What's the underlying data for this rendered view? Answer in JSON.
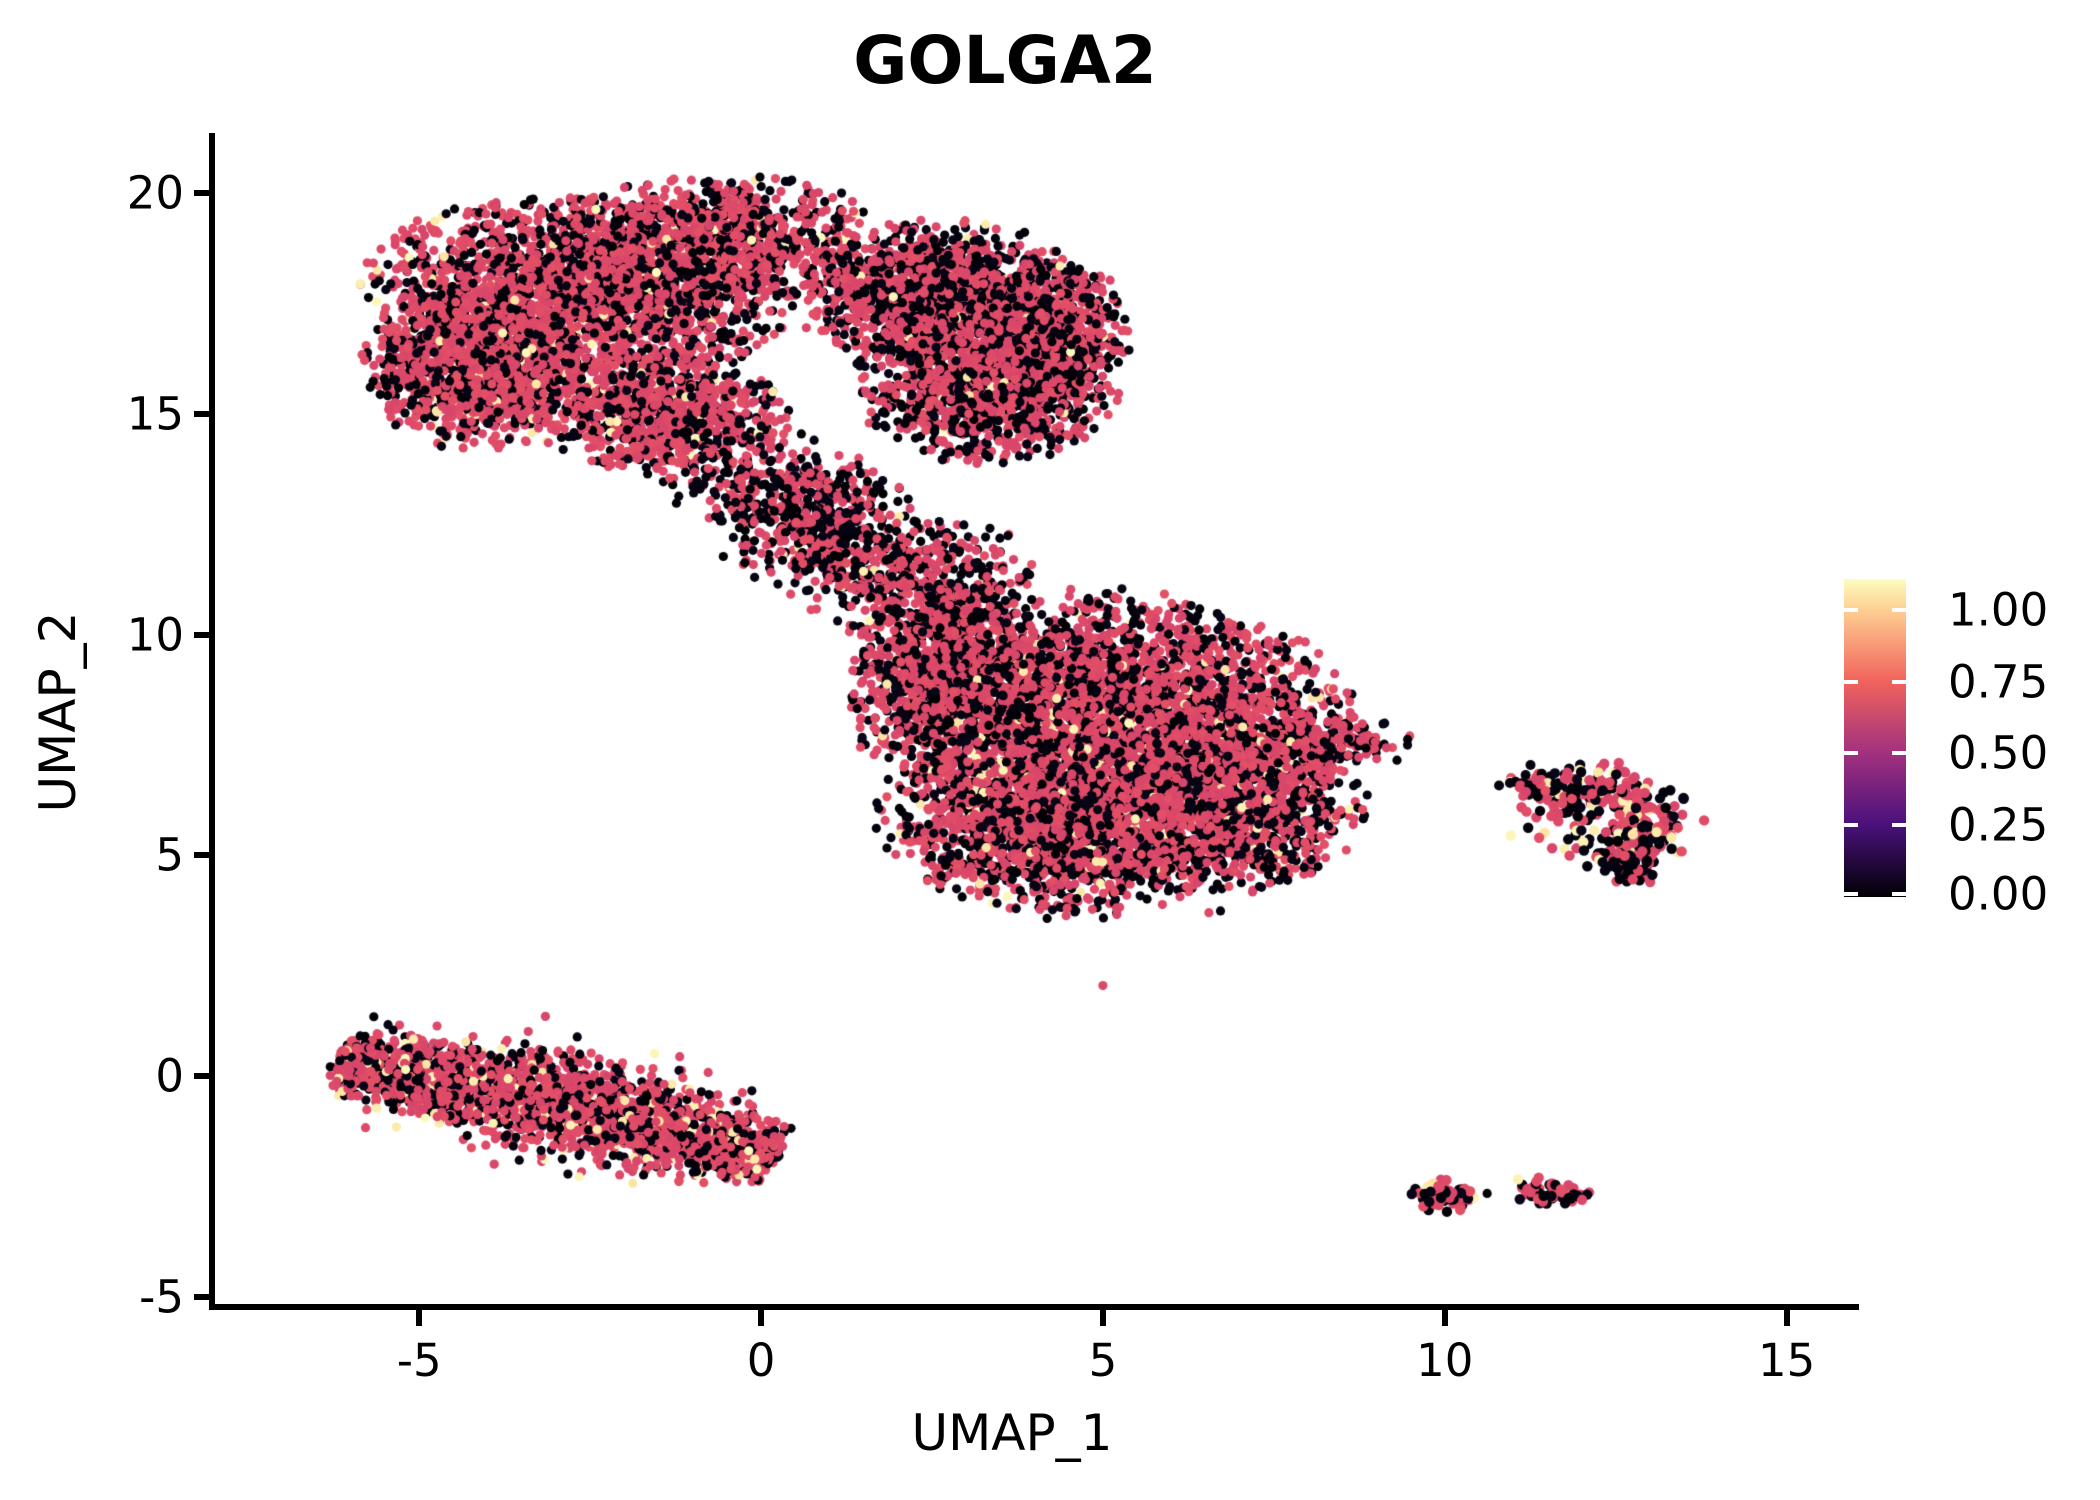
{
  "title": "GOLGA2",
  "axes": {
    "x_label": "UMAP_1",
    "y_label": "UMAP_2",
    "x_tick_labels": [
      "-5",
      "0",
      "5",
      "10",
      "15"
    ],
    "y_tick_labels": [
      "20",
      "15",
      "10",
      "5",
      "0",
      "-5"
    ]
  },
  "chart_data": {
    "type": "scatter",
    "title": "GOLGA2",
    "xlabel": "UMAP_1",
    "ylabel": "UMAP_2",
    "x_range": [
      -8.03,
      16.0
    ],
    "y_range": [
      -5.21,
      21.32
    ],
    "x_tick_values": [
      -5,
      0,
      5,
      10,
      15
    ],
    "y_tick_values": [
      20,
      15,
      10,
      5,
      0,
      -5
    ],
    "grid": false,
    "legend_position": "right",
    "point_radius": 4.6,
    "colorbar": {
      "tick_labels": [
        "1.00",
        "0.75",
        "0.50",
        "0.25",
        "0.00"
      ],
      "tick_values": [
        1.0,
        0.75,
        0.5,
        0.25,
        0.0
      ],
      "palette": "magma",
      "bar_gradient_stops": [
        [
          0,
          "#000004"
        ],
        [
          0.226,
          "#4a117b"
        ],
        [
          0.453,
          "#a2317e"
        ],
        [
          0.679,
          "#f1635c"
        ],
        [
          0.903,
          "#fecf92"
        ],
        [
          1,
          "#fcfdbf"
        ]
      ]
    },
    "palette_stops": [
      [
        0,
        "#000004"
      ],
      [
        0.1,
        "#140e36"
      ],
      [
        0.2,
        "#3b0f70"
      ],
      [
        0.3,
        "#641a80"
      ],
      [
        0.4,
        "#8c2981"
      ],
      [
        0.5,
        "#b73779"
      ],
      [
        0.6,
        "#de4968"
      ],
      [
        0.7,
        "#f7705c"
      ],
      [
        0.8,
        "#fe9f6d"
      ],
      [
        0.9,
        "#fec98d"
      ],
      [
        0.95,
        "#fde2a3"
      ],
      [
        1,
        "#fcfdbf"
      ]
    ],
    "value_classes": {
      "black": [
        0.0,
        0.04
      ],
      "pink": [
        0.58,
        0.62
      ],
      "cream": [
        0.95,
        0.995
      ]
    },
    "clusters": [
      {
        "name": "upper-left-lobe",
        "type": "blob",
        "n": 2300,
        "cx": -2.7,
        "cy": 17.8,
        "rx": 2.9,
        "ry": 1.9,
        "rot": -8,
        "mix": {
          "black": 0.36,
          "pink": 0.615,
          "cream": 0.025
        }
      },
      {
        "name": "upper-left-bulge",
        "type": "blob",
        "n": 1200,
        "cx": -4.2,
        "cy": 16.0,
        "rx": 1.5,
        "ry": 1.7,
        "rot": 15,
        "mix": {
          "black": 0.33,
          "pink": 0.64,
          "cream": 0.03
        }
      },
      {
        "name": "upper-top-ridge",
        "type": "blob",
        "n": 900,
        "cx": -0.6,
        "cy": 19.05,
        "rx": 2.2,
        "ry": 1.3,
        "rot": 0,
        "mix": {
          "black": 0.4,
          "pink": 0.585,
          "cream": 0.015
        }
      },
      {
        "name": "upper-mid-low",
        "type": "blob",
        "n": 900,
        "cx": -1.6,
        "cy": 15.1,
        "rx": 1.9,
        "ry": 1.3,
        "rot": -12,
        "mix": {
          "black": 0.34,
          "pink": 0.635,
          "cream": 0.025
        }
      },
      {
        "name": "upper-right-lobe",
        "type": "blob",
        "n": 1500,
        "cx": 2.6,
        "cy": 17.7,
        "rx": 2.0,
        "ry": 1.6,
        "rot": 0,
        "mix": {
          "black": 0.44,
          "pink": 0.545,
          "cream": 0.015
        }
      },
      {
        "name": "upper-right-lower",
        "type": "blob",
        "n": 1300,
        "cx": 3.3,
        "cy": 15.7,
        "rx": 1.8,
        "ry": 1.7,
        "rot": 0,
        "mix": {
          "black": 0.45,
          "pink": 0.535,
          "cream": 0.015
        }
      },
      {
        "name": "upper-right-bump",
        "type": "blob",
        "n": 500,
        "cx": 4.35,
        "cy": 16.9,
        "rx": 1.0,
        "ry": 1.5,
        "rot": 0,
        "mix": {
          "black": 0.42,
          "pink": 0.565,
          "cream": 0.015
        }
      },
      {
        "name": "neck-upper",
        "type": "blob",
        "n": 260,
        "cx": 0.0,
        "cy": 13.5,
        "rx": 2.1,
        "ry": 1.1,
        "rot": -20,
        "mix": {
          "black": 0.5,
          "pink": 0.49,
          "cream": 0.01
        }
      },
      {
        "name": "neck-mid",
        "type": "blob",
        "n": 380,
        "cx": 0.8,
        "cy": 12.4,
        "rx": 1.4,
        "ry": 1.4,
        "rot": 0,
        "mix": {
          "black": 0.52,
          "pink": 0.47,
          "cream": 0.01
        }
      },
      {
        "name": "neck-lower",
        "type": "blob",
        "n": 480,
        "cx": 2.3,
        "cy": 11.3,
        "rx": 1.7,
        "ry": 1.4,
        "rot": -10,
        "mix": {
          "black": 0.5,
          "pink": 0.485,
          "cream": 0.015
        }
      },
      {
        "name": "center-main",
        "type": "blob",
        "n": 3600,
        "cx": 5.0,
        "cy": 8.2,
        "rx": 3.4,
        "ry": 2.6,
        "rot": -5,
        "mix": {
          "black": 0.38,
          "pink": 0.59,
          "cream": 0.03
        }
      },
      {
        "name": "center-bottom-left",
        "type": "blob",
        "n": 1700,
        "cx": 4.2,
        "cy": 5.6,
        "rx": 2.4,
        "ry": 1.8,
        "rot": -20,
        "mix": {
          "black": 0.42,
          "pink": 0.55,
          "cream": 0.03
        }
      },
      {
        "name": "center-bottom-right",
        "type": "blob",
        "n": 1500,
        "cx": 6.8,
        "cy": 6.3,
        "rx": 1.9,
        "ry": 2.0,
        "rot": 0,
        "mix": {
          "black": 0.4,
          "pink": 0.57,
          "cream": 0.03
        }
      },
      {
        "name": "center-left-bump",
        "type": "blob",
        "n": 700,
        "cx": 2.7,
        "cy": 9.3,
        "rx": 1.4,
        "ry": 1.7,
        "rot": 0,
        "mix": {
          "black": 0.44,
          "pink": 0.545,
          "cream": 0.015
        }
      },
      {
        "name": "center-right-tail",
        "type": "blob",
        "n": 130,
        "cx": 8.5,
        "cy": 7.7,
        "rx": 1.0,
        "ry": 0.55,
        "rot": -15,
        "mix": {
          "black": 0.45,
          "pink": 0.54,
          "cream": 0.01
        }
      },
      {
        "name": "left-band",
        "type": "band",
        "n": 2600,
        "p0": [
          -6.15,
          0.3
        ],
        "p1": [
          -2.6,
          -0.45
        ],
        "p2": [
          0.15,
          -1.9
        ],
        "sigma": 0.42,
        "mix": {
          "black": 0.3,
          "pink": 0.63,
          "cream": 0.07
        }
      },
      {
        "name": "right-ring",
        "type": "ring",
        "n": 260,
        "cx": 12.3,
        "cy": 5.95,
        "r": 0.72,
        "sigma": 0.27,
        "size": 5.2,
        "mix": {
          "black": 0.44,
          "pink": 0.42,
          "cream": 0.14
        }
      },
      {
        "name": "right-ring-arm",
        "type": "band",
        "n": 110,
        "p0": [
          12.95,
          5.7
        ],
        "p1": [
          12.9,
          5.1
        ],
        "p2": [
          12.6,
          4.45
        ],
        "sigma": 0.2,
        "size": 5.2,
        "mix": {
          "black": 0.45,
          "pink": 0.41,
          "cream": 0.14
        }
      },
      {
        "name": "right-ring-west-arm",
        "type": "band",
        "n": 48,
        "p0": [
          10.95,
          6.62
        ],
        "p1": [
          11.45,
          6.6
        ],
        "p2": [
          11.95,
          6.45
        ],
        "sigma": 0.12,
        "size": 5.0,
        "mix": {
          "black": 0.55,
          "pink": 0.38,
          "cream": 0.07
        }
      },
      {
        "name": "bottom-small-left",
        "type": "blob",
        "n": 78,
        "cx": 9.95,
        "cy": -2.72,
        "rx": 0.45,
        "ry": 0.34,
        "rot": -10,
        "size": 5.2,
        "mix": {
          "black": 0.42,
          "pink": 0.53,
          "cream": 0.05
        }
      },
      {
        "name": "bottom-small-right",
        "type": "band",
        "n": 58,
        "p0": [
          11.05,
          -2.5
        ],
        "p1": [
          11.5,
          -2.62
        ],
        "p2": [
          12.0,
          -2.76
        ],
        "sigma": 0.12,
        "size": 5.2,
        "mix": {
          "black": 0.5,
          "pink": 0.48,
          "cream": 0.02
        }
      }
    ],
    "extra_points": [
      {
        "x": 6.55,
        "y": 3.7,
        "class": "pink"
      },
      {
        "x": 6.72,
        "y": 3.74,
        "class": "black"
      },
      {
        "x": 5.0,
        "y": 2.05,
        "class": "pink"
      },
      {
        "x": 10.62,
        "y": -2.66,
        "class": "black"
      }
    ]
  }
}
